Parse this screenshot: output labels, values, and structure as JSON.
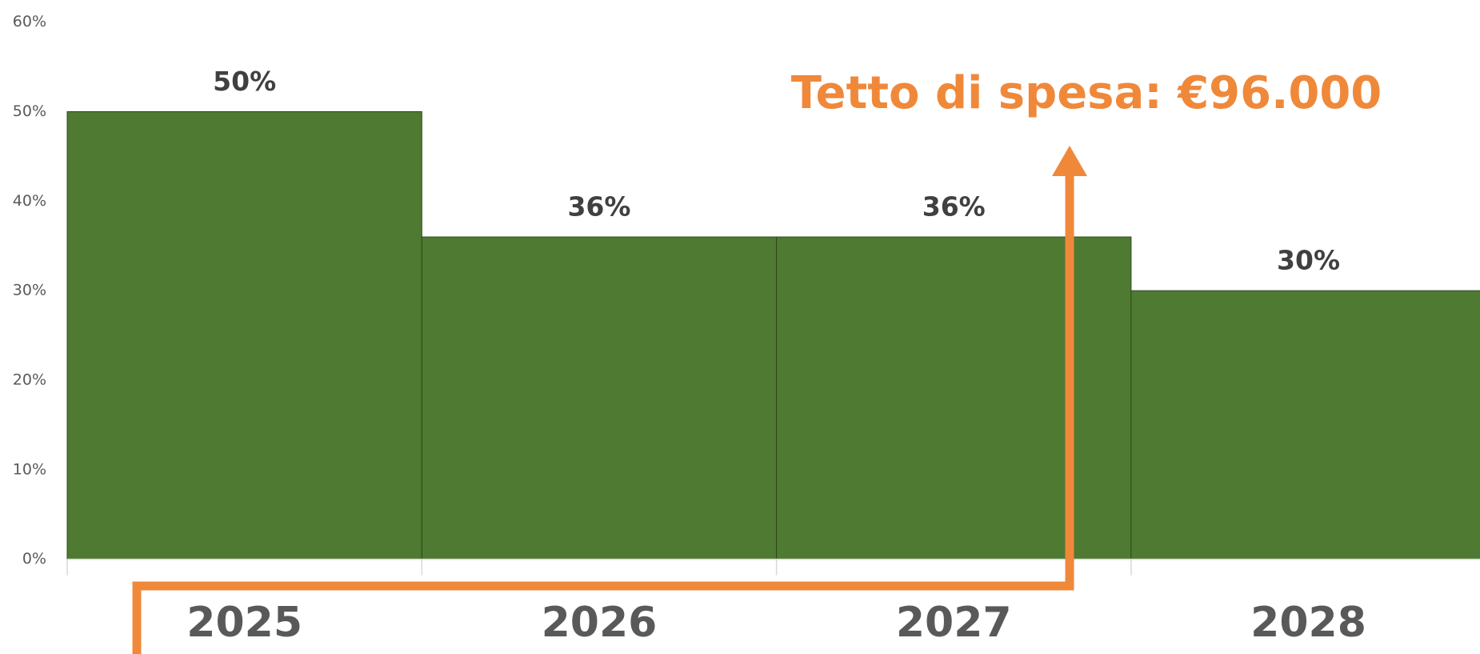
{
  "chart_data": {
    "type": "bar",
    "categories": [
      "2025",
      "2026",
      "2027",
      "2028"
    ],
    "values": [
      50,
      36,
      36,
      30
    ],
    "value_labels": [
      "50%",
      "36%",
      "36%",
      "30%"
    ],
    "color": "#4e7a31",
    "ylim": [
      0,
      60
    ],
    "yticks": [
      {
        "value": 0,
        "label": "0%"
      },
      {
        "value": 10,
        "label": "10%"
      },
      {
        "value": 20,
        "label": "20%"
      },
      {
        "value": 30,
        "label": "30%"
      },
      {
        "value": 40,
        "label": "40%"
      },
      {
        "value": 50,
        "label": "50%"
      },
      {
        "value": 60,
        "label": "60%"
      }
    ],
    "annotation": "Tetto di spesa: €96.000"
  }
}
